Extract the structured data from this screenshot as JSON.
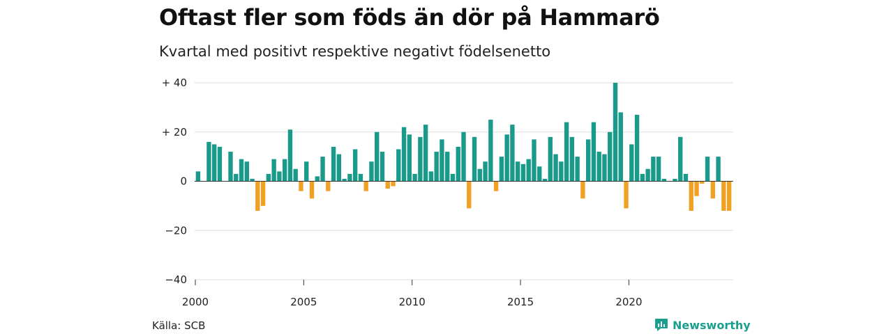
{
  "title": "Oftast fler som föds än dör på Hammarö",
  "subtitle": "Kvartal med positivt respektive negativt födelsenetto",
  "source": "Källa: SCB",
  "brand": "Newsworthy",
  "colors": {
    "positive": "#1a9a8a",
    "negative": "#f0a124",
    "grid": "#dddddd"
  },
  "icons": {
    "brand": "newsworthy-chart-icon"
  },
  "chart_data": {
    "type": "bar",
    "start_year": 2000,
    "ylim": [
      -40,
      40
    ],
    "grid": true,
    "y_ticks": [
      {
        "value": 40,
        "label": "+ 40"
      },
      {
        "value": 20,
        "label": "+ 20"
      },
      {
        "value": 0,
        "label": "0"
      },
      {
        "value": -20,
        "label": "−20"
      },
      {
        "value": -40,
        "label": "−40"
      }
    ],
    "x_ticks": [
      {
        "year": 2000,
        "label": "2000"
      },
      {
        "year": 2005,
        "label": "2005"
      },
      {
        "year": 2010,
        "label": "2010"
      },
      {
        "year": 2015,
        "label": "2015"
      },
      {
        "year": 2020,
        "label": "2020"
      }
    ],
    "values": [
      4,
      0,
      16,
      15,
      14,
      0,
      12,
      3,
      9,
      8,
      1,
      -12,
      -10,
      3,
      9,
      4,
      9,
      21,
      5,
      -4,
      8,
      -7,
      2,
      10,
      -4,
      14,
      11,
      1,
      3,
      13,
      3,
      -4,
      8,
      20,
      12,
      -3,
      -2,
      13,
      22,
      19,
      3,
      18,
      23,
      4,
      12,
      17,
      12,
      3,
      14,
      20,
      -11,
      18,
      5,
      8,
      25,
      -4,
      10,
      19,
      23,
      8,
      7,
      9,
      17,
      6,
      1,
      18,
      11,
      8,
      24,
      18,
      10,
      -7,
      17,
      24,
      12,
      11,
      20,
      40,
      28,
      -11,
      15,
      27,
      3,
      5,
      10,
      10,
      1,
      0,
      1,
      18,
      3,
      -12,
      -6,
      -1,
      10,
      -7,
      10,
      -12,
      -12
    ]
  }
}
